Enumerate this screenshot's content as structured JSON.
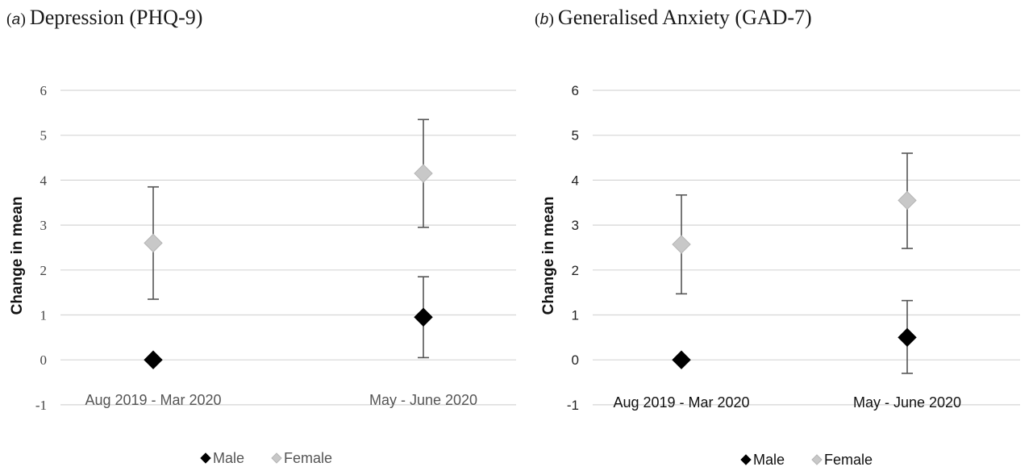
{
  "chart_data": [
    {
      "type": "scatter",
      "panel_label": "a",
      "title": "Depression (PHQ-9)",
      "ylabel": "Change in mean",
      "categories": [
        "Aug 2019 - Mar 2020",
        "May - June 2020"
      ],
      "ylim": [
        -1,
        6
      ],
      "yticks": [
        "6",
        "5",
        "4",
        "3",
        "2",
        "1",
        "0",
        "-1"
      ],
      "grid": true,
      "legend": "bottom",
      "series": [
        {
          "name": "Male",
          "color": "#000000",
          "marker": "diamond",
          "values": [
            0,
            0.95
          ],
          "err_low": [
            null,
            0.05
          ],
          "err_high": [
            null,
            1.85
          ]
        },
        {
          "name": "Female",
          "color": "#c8c8c8",
          "marker": "diamond",
          "values": [
            2.6,
            4.15
          ],
          "err_low": [
            1.35,
            2.95
          ],
          "err_high": [
            3.85,
            5.35
          ]
        }
      ]
    },
    {
      "type": "scatter",
      "panel_label": "b",
      "title": "Generalised Anxiety (GAD-7)",
      "ylabel": "Change in mean",
      "categories": [
        "Aug 2019 - Mar 2020",
        "May - June 2020"
      ],
      "ylim": [
        -1,
        6
      ],
      "yticks": [
        "6",
        "5",
        "4",
        "3",
        "2",
        "1",
        "0",
        "-1"
      ],
      "grid": true,
      "legend": "bottom",
      "series": [
        {
          "name": "Male",
          "color": "#000000",
          "marker": "diamond",
          "values": [
            0,
            0.5
          ],
          "err_low": [
            null,
            -0.3
          ],
          "err_high": [
            null,
            1.32
          ]
        },
        {
          "name": "Female",
          "color": "#c8c8c8",
          "marker": "diamond",
          "values": [
            2.57,
            3.55
          ],
          "err_low": [
            1.47,
            2.48
          ],
          "err_high": [
            3.67,
            4.6
          ]
        }
      ]
    }
  ]
}
